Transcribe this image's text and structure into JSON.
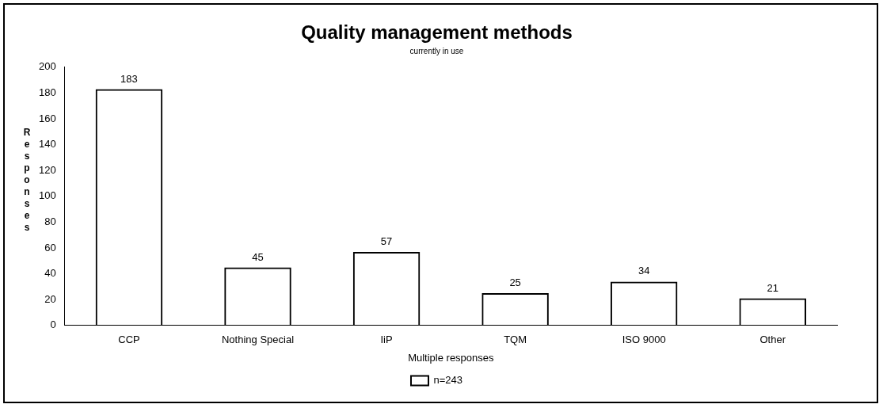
{
  "chart_data": {
    "type": "bar",
    "title": "Quality management methods",
    "subtitle": "currently in use",
    "xlabel": "Multiple responses",
    "ylabel": "Responses",
    "categories": [
      "CCP",
      "Nothing Special",
      "IiP",
      "TQM",
      "ISO 9000",
      "Other"
    ],
    "series": [
      {
        "name": "n=243",
        "color": "#000000",
        "values": [
          183,
          45,
          57,
          25,
          34,
          21
        ]
      }
    ],
    "ylim": [
      0,
      200
    ],
    "yticks": [
      0,
      20,
      40,
      60,
      80,
      100,
      120,
      140,
      160,
      180,
      200
    ],
    "data_labels": true,
    "legend": "bottom",
    "grid": false
  }
}
